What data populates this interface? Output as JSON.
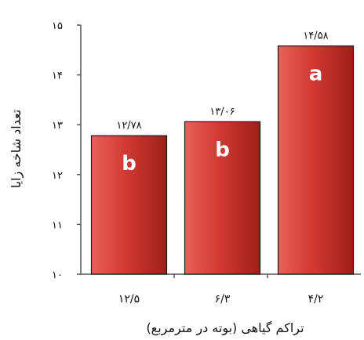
{
  "chart_data": {
    "type": "bar",
    "categories": [
      "۱۲/۵",
      "۶/۳",
      "۴/۲"
    ],
    "values": [
      12.78,
      13.06,
      14.58
    ],
    "value_labels": [
      "۱۲/۷۸",
      "۱۳/۰۶",
      "۱۴/۵۸"
    ],
    "group_letters": [
      "b",
      "b",
      "a"
    ],
    "ylim": [
      10,
      15
    ],
    "yticks": [
      10,
      11,
      12,
      13,
      14,
      15
    ],
    "ytick_labels": [
      "۱۰",
      "۱۱",
      "۱۲",
      "۱۳",
      "۱۴",
      "۱۵"
    ],
    "xlabel": "تراکم گیاهی (بوته در مترمربع)",
    "ylabel": "تعداد شاخه زایا",
    "grid": false,
    "colors": {
      "bar_light": "#e8605a",
      "bar_mid": "#d23a33",
      "bar_dark": "#9e1e1a",
      "bar_edge": "#1a1a1a",
      "axis": "#555555"
    }
  }
}
